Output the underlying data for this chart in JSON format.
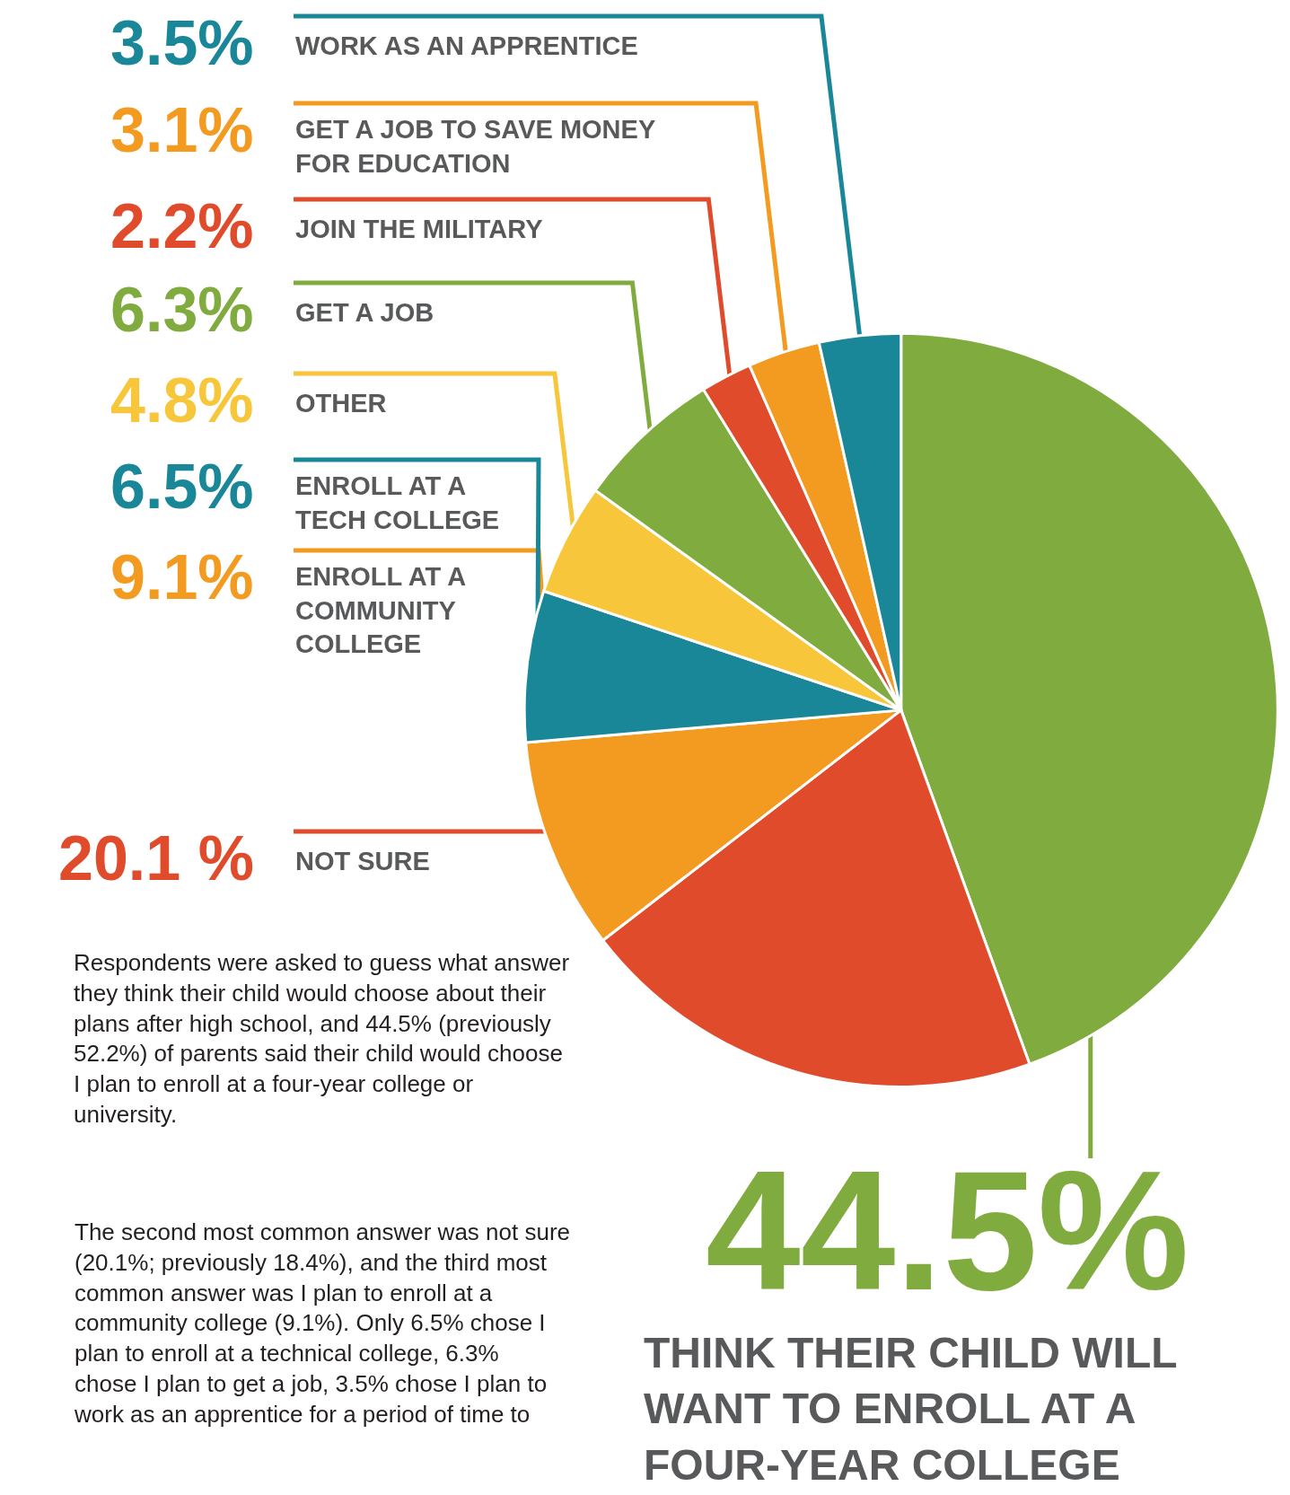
{
  "chart_data": {
    "type": "pie",
    "categories": [
      "THINK THEIR CHILD WILL\nWANT TO ENROLL AT A\nFOUR-YEAR COLLEGE",
      "NOT SURE",
      "ENROLL AT A\nCOMMUNITY\nCOLLEGE",
      "ENROLL AT A\nTECH COLLEGE",
      "OTHER",
      "GET A JOB",
      "JOIN THE MILITARY",
      "GET A JOB TO SAVE MONEY\nFOR EDUCATION",
      "WORK AS AN APPRENTICE"
    ],
    "values": [
      44.5,
      20.1,
      9.1,
      6.5,
      4.8,
      6.3,
      2.2,
      3.1,
      3.5
    ],
    "value_labels": [
      "44.5%",
      "20.1 %",
      "9.1%",
      "6.5%",
      "4.8%",
      "6.3%",
      "2.2%",
      "3.1%",
      "3.5%"
    ],
    "colors": [
      "#80ab3f",
      "#e04b2b",
      "#f39a20",
      "#1a8799",
      "#f8c63a",
      "#80ab3f",
      "#e04b2b",
      "#f39a20",
      "#1a8799"
    ],
    "annotations": [
      "Respondents were asked to guess what answer they think their child would choose about their plans after high school, and 44.5% (previously 52.2%) of parents said their child would choose I plan to enroll at a four-year college or university.",
      "The second most common answer was not sure (20.1%; previously 18.4%), and the third most common answer was I plan to enroll at a community college (9.1%). Only 6.5% chose I plan to enroll at a technical college, 6.3% chose I plan to get a job, 3.5% chose I plan to work as an apprentice for a period of time to"
    ]
  }
}
